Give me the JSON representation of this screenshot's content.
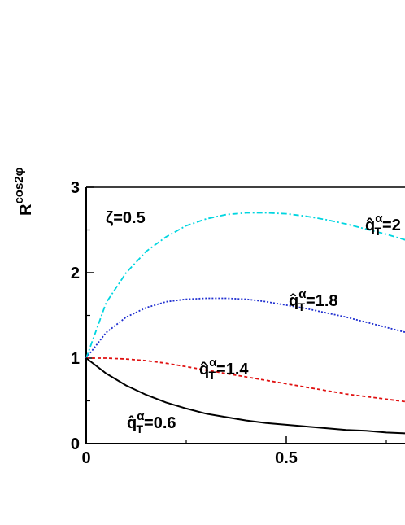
{
  "chart_data": {
    "type": "line",
    "title": "",
    "xlabel": "",
    "ylabel": "R^{cos2φ}",
    "ylabel_parts": {
      "base": "R",
      "sup": "cos2φ"
    },
    "xlim": [
      0,
      0.8
    ],
    "ylim": [
      0,
      3
    ],
    "x_ticks": [
      0,
      0.5
    ],
    "x_tick_labels": [
      "0",
      "0.5"
    ],
    "y_ticks": [
      0,
      1,
      2,
      3
    ],
    "y_tick_labels": [
      "0",
      "1",
      "2",
      "3"
    ],
    "grid": false,
    "legend": "none",
    "annotations": {
      "zeta": "ζ=0.5"
    },
    "series": [
      {
        "label_value": "2",
        "style": "dash-dot",
        "color": "#00d5e0",
        "x": [
          0,
          0.05,
          0.1,
          0.15,
          0.2,
          0.25,
          0.3,
          0.35,
          0.4,
          0.45,
          0.5,
          0.55,
          0.6,
          0.65,
          0.7,
          0.75,
          0.8
        ],
        "y": [
          1.0,
          1.65,
          2.0,
          2.25,
          2.42,
          2.55,
          2.63,
          2.68,
          2.7,
          2.7,
          2.69,
          2.66,
          2.62,
          2.57,
          2.51,
          2.45,
          2.38
        ]
      },
      {
        "label_value": "1.8",
        "style": "dotted",
        "color": "#1f2fd0",
        "x": [
          0,
          0.05,
          0.1,
          0.15,
          0.2,
          0.25,
          0.3,
          0.35,
          0.4,
          0.45,
          0.5,
          0.55,
          0.6,
          0.65,
          0.7,
          0.75,
          0.8
        ],
        "y": [
          1.0,
          1.3,
          1.48,
          1.59,
          1.66,
          1.69,
          1.7,
          1.7,
          1.69,
          1.66,
          1.62,
          1.58,
          1.53,
          1.48,
          1.42,
          1.36,
          1.3
        ]
      },
      {
        "label_value": "1.4",
        "style": "dashed",
        "color": "#e01010",
        "x": [
          0,
          0.05,
          0.1,
          0.15,
          0.2,
          0.25,
          0.3,
          0.35,
          0.4,
          0.45,
          0.5,
          0.55,
          0.6,
          0.65,
          0.7,
          0.75,
          0.8
        ],
        "y": [
          1.0,
          1.0,
          0.99,
          0.97,
          0.94,
          0.9,
          0.86,
          0.82,
          0.78,
          0.74,
          0.7,
          0.66,
          0.62,
          0.58,
          0.55,
          0.52,
          0.49
        ]
      },
      {
        "label_value": "0.6",
        "style": "solid",
        "color": "#000000",
        "x": [
          0,
          0.05,
          0.1,
          0.15,
          0.2,
          0.25,
          0.3,
          0.35,
          0.4,
          0.45,
          0.5,
          0.55,
          0.6,
          0.65,
          0.7,
          0.75,
          0.8
        ],
        "y": [
          1.0,
          0.82,
          0.68,
          0.57,
          0.48,
          0.41,
          0.35,
          0.31,
          0.27,
          0.24,
          0.22,
          0.2,
          0.18,
          0.16,
          0.15,
          0.13,
          0.12
        ]
      }
    ],
    "curve_label_text": {
      "base": "q̂",
      "sub": "T",
      "sup": "α",
      "eq": "="
    }
  }
}
